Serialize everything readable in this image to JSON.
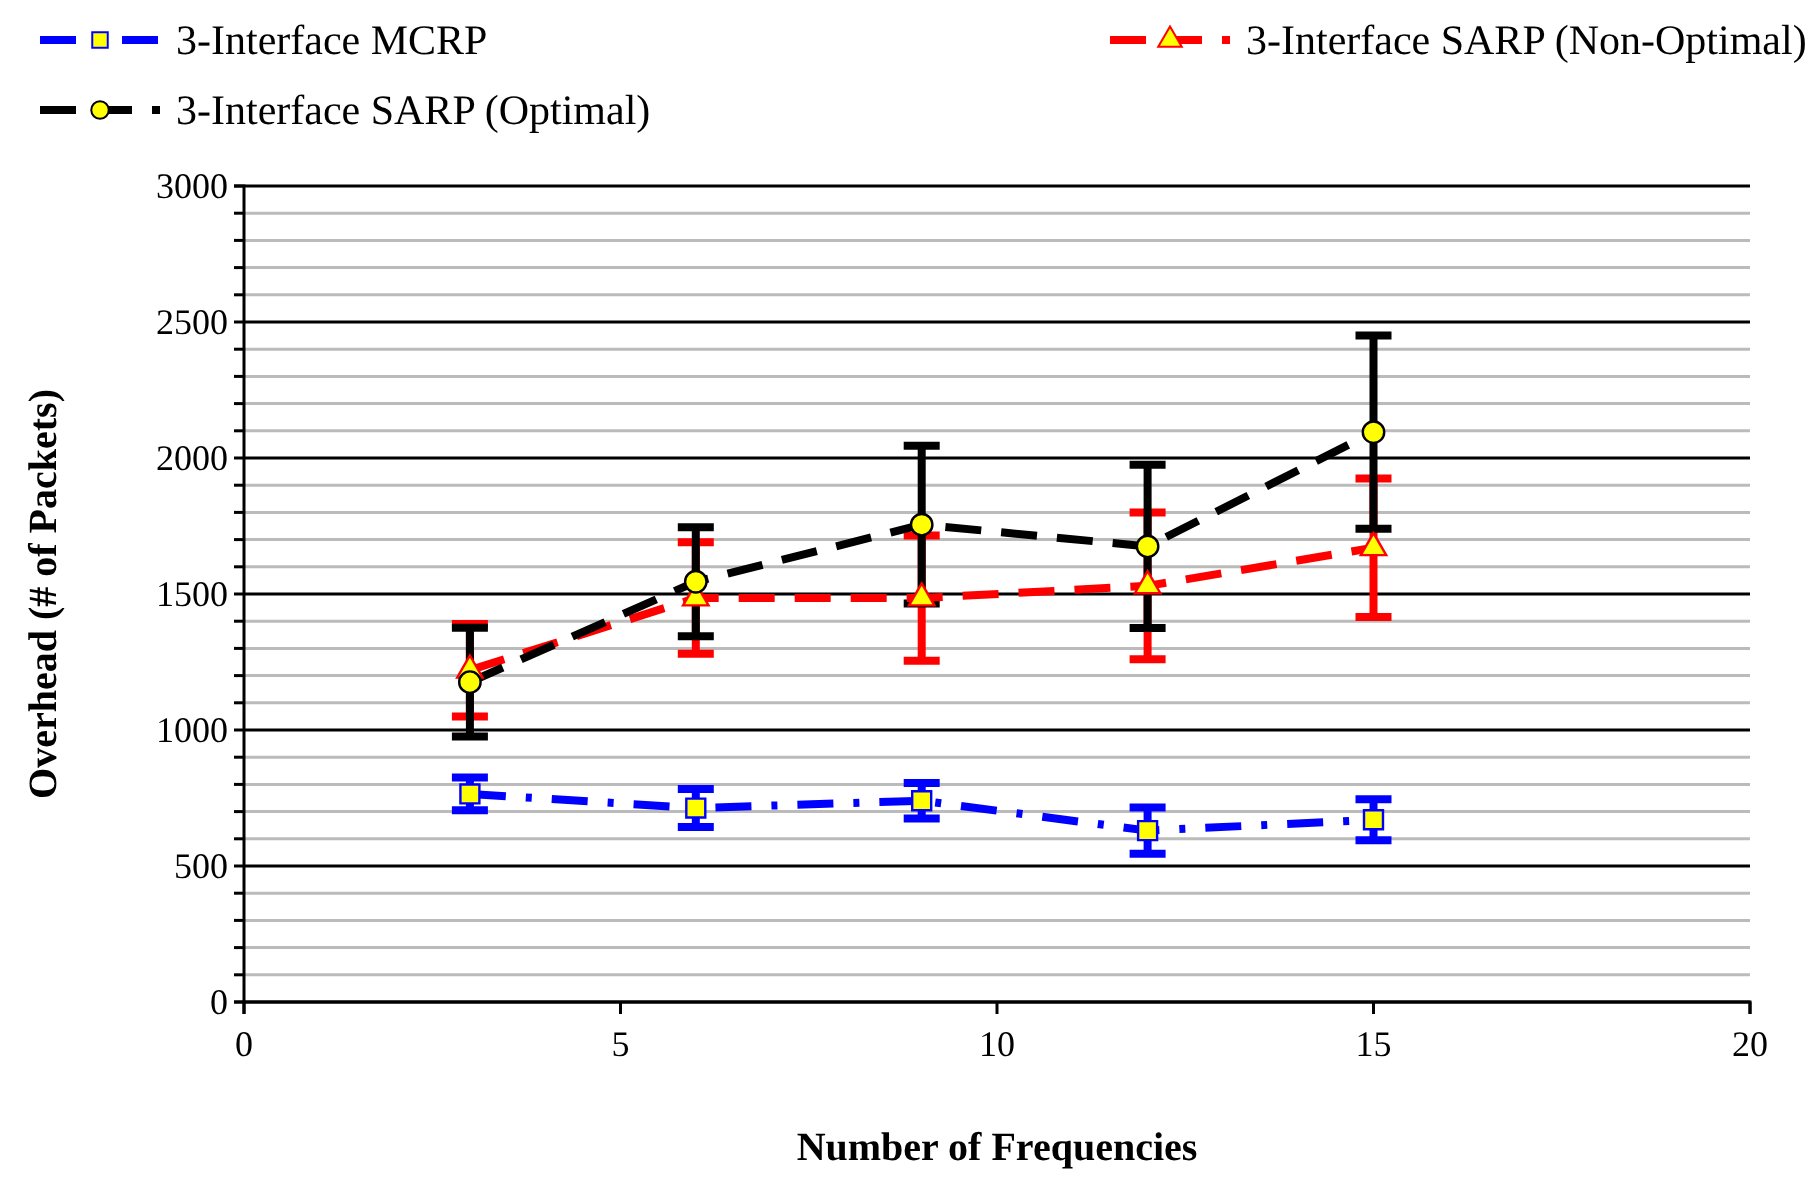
{
  "chart_data": {
    "type": "line",
    "xlabel": "Number of Frequencies",
    "ylabel": "Overhead (# of Packets)",
    "xlim": [
      0,
      20
    ],
    "xticks": [
      0,
      5,
      10,
      15,
      20
    ],
    "ylim": [
      0,
      3000
    ],
    "yticks": [
      0,
      {
        "value": 100,
        "label": null
      },
      {
        "value": 200,
        "label": null
      },
      {
        "value": 300,
        "label": null
      },
      {
        "value": 400,
        "label": null
      },
      500,
      {
        "value": 600,
        "label": null
      },
      {
        "value": 700,
        "label": null
      },
      {
        "value": 800,
        "label": null
      },
      {
        "value": 900,
        "label": null
      },
      1000,
      {
        "value": 1100,
        "label": null
      },
      {
        "value": 1200,
        "label": null
      },
      {
        "value": 1300,
        "label": null
      },
      {
        "value": 1400,
        "label": null
      },
      1500,
      {
        "value": 1600,
        "label": null
      },
      {
        "value": 1700,
        "label": null
      },
      {
        "value": 1800,
        "label": null
      },
      {
        "value": 1900,
        "label": null
      },
      2000,
      {
        "value": 2100,
        "label": null
      },
      {
        "value": 2200,
        "label": null
      },
      {
        "value": 2300,
        "label": null
      },
      {
        "value": 2400,
        "label": null
      },
      2500,
      {
        "value": 2600,
        "label": null
      },
      {
        "value": 2700,
        "label": null
      },
      {
        "value": 2800,
        "label": null
      },
      {
        "value": 2900,
        "label": null
      },
      3000
    ],
    "grid": "y",
    "legend": "top",
    "x": [
      3,
      6,
      9,
      12,
      15
    ],
    "series": [
      {
        "name": "3-Interface MCRP",
        "color": "#0000ff",
        "marker": "square",
        "line_style": "dashdot",
        "values": [
          765,
          713,
          740,
          630,
          670
        ],
        "errors": [
          60,
          70,
          65,
          85,
          75
        ]
      },
      {
        "name": "3-Interface SARP (Non-Optimal)",
        "color": "#ff0000",
        "marker": "triangle",
        "line_style": "dashed",
        "values": [
          1220,
          1485,
          1485,
          1530,
          1670
        ],
        "errors": [
          170,
          205,
          230,
          270,
          255
        ]
      },
      {
        "name": "3-Interface SARP (Optimal)",
        "color": "#000000",
        "marker": "circle",
        "line_style": "dashed",
        "values": [
          1176,
          1545,
          1755,
          1675,
          2095
        ],
        "errors": [
          200,
          200,
          290,
          300,
          355
        ]
      }
    ]
  }
}
